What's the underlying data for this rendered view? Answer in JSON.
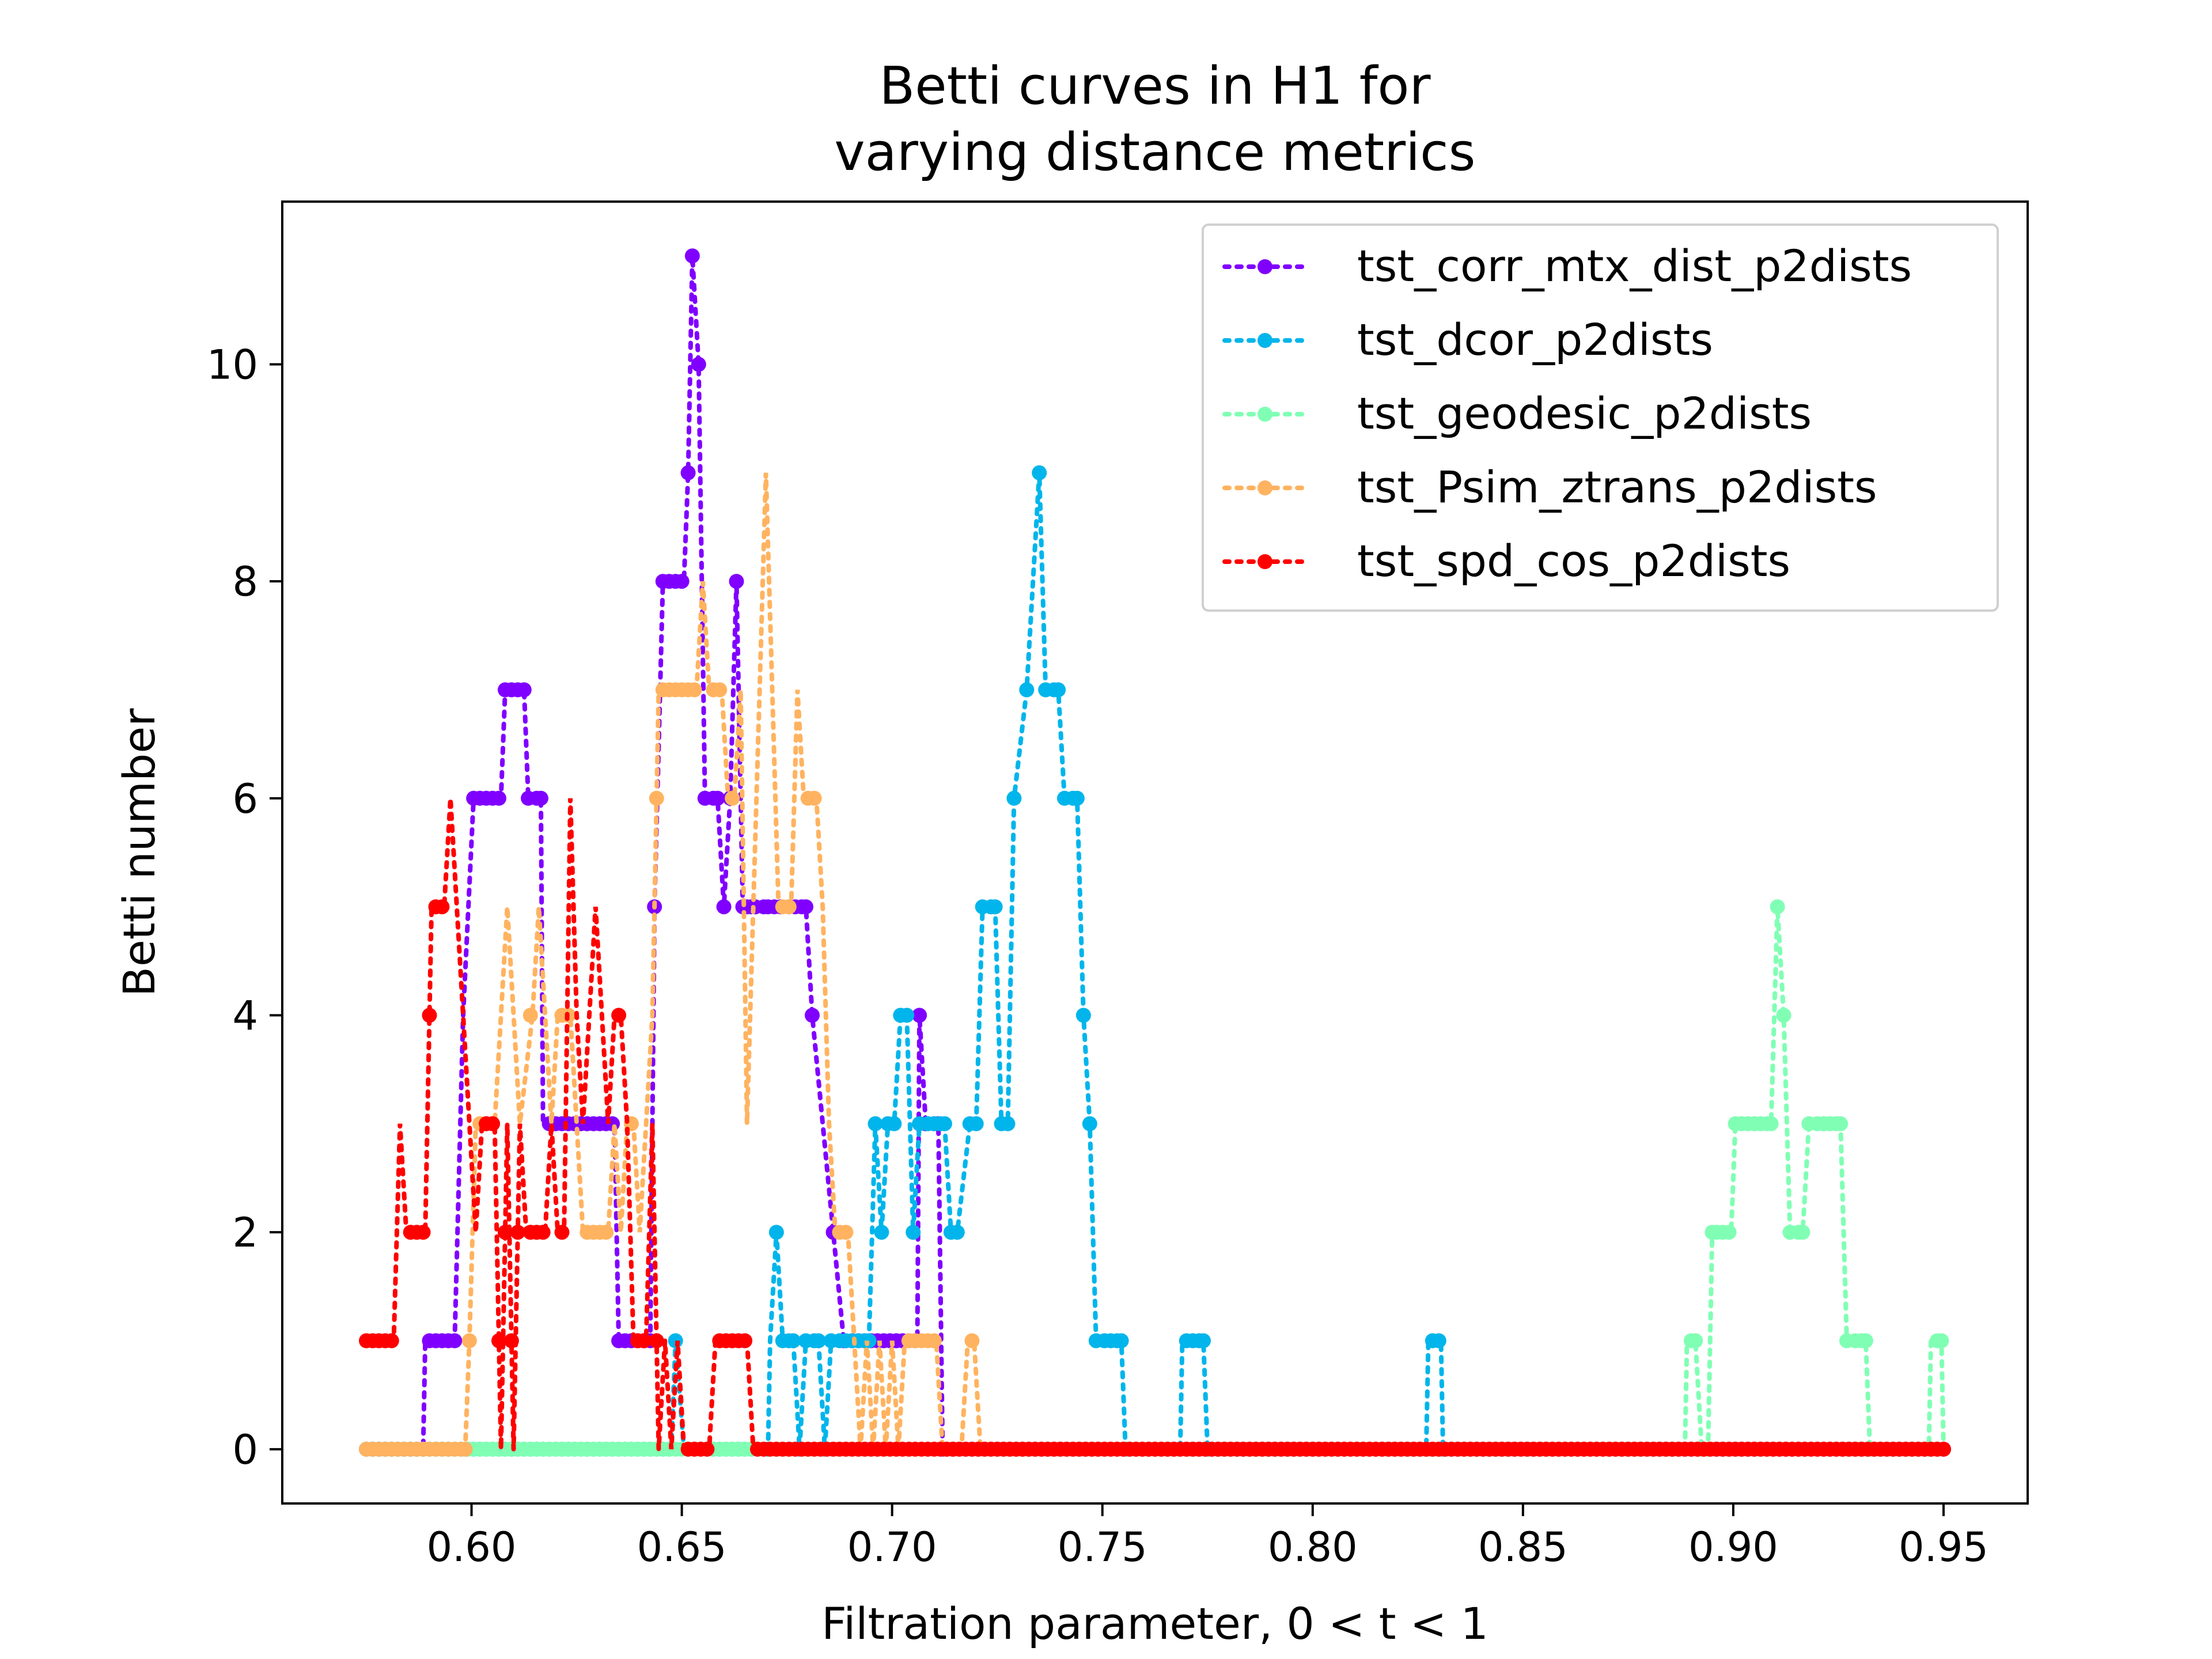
{
  "chart_data": {
    "type": "line",
    "title_lines": [
      "Betti curves in H1 for",
      "varying distance metrics"
    ],
    "xlabel": "Filtration parameter, 0 < t < 1",
    "ylabel": "Betti number",
    "xlim": [
      0.555,
      0.97
    ],
    "ylim": [
      -0.5,
      11.5
    ],
    "xticks": [
      0.6,
      0.65,
      0.7,
      0.75,
      0.8,
      0.85,
      0.9,
      0.95
    ],
    "xtick_labels": [
      "0.60",
      "0.65",
      "0.70",
      "0.75",
      "0.80",
      "0.85",
      "0.90",
      "0.95"
    ],
    "yticks": [
      0,
      2,
      4,
      6,
      8,
      10
    ],
    "ytick_labels": [
      "0",
      "2",
      "4",
      "6",
      "8",
      "10"
    ],
    "grid": false,
    "legend_position": "top-right",
    "x_start": 0.575,
    "x_step": 0.0015,
    "series": [
      {
        "name": "tst_corr_mtx_dist_p2dists",
        "color": "#8000ff",
        "points": [
          [
            0.575,
            0
          ],
          [
            0.5885,
            0
          ],
          [
            0.589,
            1
          ],
          [
            0.596,
            1
          ],
          [
            0.598,
            4
          ],
          [
            0.6005,
            6
          ],
          [
            0.607,
            6
          ],
          [
            0.608,
            7
          ],
          [
            0.6125,
            7
          ],
          [
            0.6135,
            6
          ],
          [
            0.6165,
            6
          ],
          [
            0.617,
            3
          ],
          [
            0.634,
            3
          ],
          [
            0.635,
            1
          ],
          [
            0.6425,
            1
          ],
          [
            0.6435,
            5
          ],
          [
            0.6455,
            8
          ],
          [
            0.6505,
            8
          ],
          [
            0.6515,
            9
          ],
          [
            0.6525,
            11
          ],
          [
            0.654,
            10
          ],
          [
            0.6555,
            6
          ],
          [
            0.6585,
            6
          ],
          [
            0.66,
            5
          ],
          [
            0.6615,
            6
          ],
          [
            0.663,
            8
          ],
          [
            0.6645,
            5
          ],
          [
            0.6655,
            5
          ],
          [
            0.6675,
            5
          ],
          [
            0.6705,
            5
          ],
          [
            0.672,
            5
          ],
          [
            0.6735,
            5
          ],
          [
            0.6795,
            5
          ],
          [
            0.681,
            4
          ],
          [
            0.6885,
            1
          ],
          [
            0.706,
            1
          ],
          [
            0.7065,
            4
          ],
          [
            0.708,
            3
          ],
          [
            0.711,
            3
          ],
          [
            0.712,
            0
          ],
          [
            0.95,
            0
          ]
        ]
      },
      {
        "name": "tst_dcor_p2dists",
        "color": "#00b5eb",
        "points": [
          [
            0.575,
            0
          ],
          [
            0.6475,
            0
          ],
          [
            0.6485,
            1
          ],
          [
            0.6505,
            0
          ],
          [
            0.6705,
            0
          ],
          [
            0.671,
            1
          ],
          [
            0.6725,
            2
          ],
          [
            0.674,
            1
          ],
          [
            0.6765,
            1
          ],
          [
            0.678,
            0
          ],
          [
            0.6795,
            1
          ],
          [
            0.6825,
            1
          ],
          [
            0.684,
            0
          ],
          [
            0.6855,
            1
          ],
          [
            0.6945,
            1
          ],
          [
            0.696,
            3
          ],
          [
            0.6975,
            2
          ],
          [
            0.699,
            3
          ],
          [
            0.7005,
            3
          ],
          [
            0.702,
            4
          ],
          [
            0.7035,
            4
          ],
          [
            0.705,
            2
          ],
          [
            0.7065,
            3
          ],
          [
            0.7125,
            3
          ],
          [
            0.714,
            2
          ],
          [
            0.7155,
            2
          ],
          [
            0.7185,
            3
          ],
          [
            0.72,
            3
          ],
          [
            0.7215,
            5
          ],
          [
            0.7245,
            5
          ],
          [
            0.726,
            3
          ],
          [
            0.7275,
            3
          ],
          [
            0.729,
            6
          ],
          [
            0.732,
            7
          ],
          [
            0.735,
            9
          ],
          [
            0.7365,
            7
          ],
          [
            0.7395,
            7
          ],
          [
            0.741,
            6
          ],
          [
            0.744,
            6
          ],
          [
            0.7455,
            4
          ],
          [
            0.747,
            3
          ],
          [
            0.7485,
            1
          ],
          [
            0.7545,
            1
          ],
          [
            0.7555,
            0
          ],
          [
            0.7685,
            0
          ],
          [
            0.769,
            1
          ],
          [
            0.774,
            1
          ],
          [
            0.775,
            0
          ],
          [
            0.827,
            0
          ],
          [
            0.8275,
            1
          ],
          [
            0.8305,
            1
          ],
          [
            0.831,
            0
          ],
          [
            0.95,
            0
          ]
        ]
      },
      {
        "name": "tst_geodesic_p2dists",
        "color": "#80ffb4",
        "points": [
          [
            0.575,
            0
          ],
          [
            0.8885,
            0
          ],
          [
            0.889,
            1
          ],
          [
            0.891,
            1
          ],
          [
            0.8925,
            0
          ],
          [
            0.894,
            0
          ],
          [
            0.895,
            2
          ],
          [
            0.8995,
            2
          ],
          [
            0.9005,
            3
          ],
          [
            0.909,
            3
          ],
          [
            0.9105,
            5
          ],
          [
            0.912,
            4
          ],
          [
            0.9135,
            2
          ],
          [
            0.9165,
            2
          ],
          [
            0.918,
            3
          ],
          [
            0.9255,
            3
          ],
          [
            0.927,
            1
          ],
          [
            0.9315,
            1
          ],
          [
            0.9325,
            0
          ],
          [
            0.9465,
            0
          ],
          [
            0.947,
            1
          ],
          [
            0.9495,
            1
          ],
          [
            0.95,
            0
          ]
        ]
      },
      {
        "name": "tst_Psim_ztrans_p2dists",
        "color": "#ffb360",
        "points": [
          [
            0.575,
            0
          ],
          [
            0.5985,
            0
          ],
          [
            0.5995,
            1
          ],
          [
            0.601,
            3
          ],
          [
            0.6055,
            3
          ],
          [
            0.607,
            4
          ],
          [
            0.6085,
            5
          ],
          [
            0.61,
            4
          ],
          [
            0.6115,
            3
          ],
          [
            0.6145,
            4
          ],
          [
            0.616,
            5
          ],
          [
            0.6175,
            4
          ],
          [
            0.619,
            3
          ],
          [
            0.6205,
            4
          ],
          [
            0.6235,
            4
          ],
          [
            0.6265,
            2
          ],
          [
            0.6325,
            2
          ],
          [
            0.634,
            3
          ],
          [
            0.6355,
            2
          ],
          [
            0.637,
            3
          ],
          [
            0.6385,
            3
          ],
          [
            0.64,
            2
          ],
          [
            0.6415,
            3
          ],
          [
            0.643,
            4
          ],
          [
            0.6445,
            7
          ],
          [
            0.6535,
            7
          ],
          [
            0.655,
            8
          ],
          [
            0.6565,
            7
          ],
          [
            0.6595,
            7
          ],
          [
            0.661,
            6
          ],
          [
            0.6625,
            6
          ],
          [
            0.664,
            7
          ],
          [
            0.6655,
            3
          ],
          [
            0.667,
            5
          ],
          [
            0.6685,
            7
          ],
          [
            0.67,
            9
          ],
          [
            0.6715,
            7
          ],
          [
            0.673,
            5
          ],
          [
            0.676,
            5
          ],
          [
            0.6775,
            7
          ],
          [
            0.679,
            6
          ],
          [
            0.682,
            6
          ],
          [
            0.6835,
            5
          ],
          [
            0.685,
            3
          ],
          [
            0.6865,
            2
          ],
          [
            0.6895,
            2
          ],
          [
            0.691,
            1
          ],
          [
            0.6925,
            0
          ],
          [
            0.694,
            1
          ],
          [
            0.6955,
            0
          ],
          [
            0.697,
            1
          ],
          [
            0.6985,
            0
          ],
          [
            0.7,
            1
          ],
          [
            0.7015,
            0
          ],
          [
            0.703,
            1
          ],
          [
            0.7105,
            1
          ],
          [
            0.712,
            0
          ],
          [
            0.7165,
            0
          ],
          [
            0.718,
            1
          ],
          [
            0.7195,
            1
          ],
          [
            0.721,
            0
          ],
          [
            0.95,
            0
          ]
        ]
      },
      {
        "name": "tst_spd_cos_p2dists",
        "color": "#ff0000",
        "points": [
          [
            0.575,
            1
          ],
          [
            0.5815,
            1
          ],
          [
            0.583,
            3
          ],
          [
            0.5845,
            2
          ],
          [
            0.589,
            2
          ],
          [
            0.5905,
            5
          ],
          [
            0.5935,
            5
          ],
          [
            0.595,
            6
          ],
          [
            0.5965,
            5
          ],
          [
            0.598,
            4
          ],
          [
            0.5995,
            3
          ],
          [
            0.601,
            2
          ],
          [
            0.6025,
            3
          ],
          [
            0.6055,
            3
          ],
          [
            0.607,
            0
          ],
          [
            0.6085,
            3
          ],
          [
            0.61,
            0
          ],
          [
            0.6115,
            3
          ],
          [
            0.613,
            2
          ],
          [
            0.6175,
            2
          ],
          [
            0.619,
            3
          ],
          [
            0.6205,
            2
          ],
          [
            0.622,
            2
          ],
          [
            0.6235,
            6
          ],
          [
            0.625,
            4
          ],
          [
            0.6265,
            3
          ],
          [
            0.628,
            4
          ],
          [
            0.6295,
            5
          ],
          [
            0.631,
            4
          ],
          [
            0.6325,
            3
          ],
          [
            0.634,
            4
          ],
          [
            0.6355,
            4
          ],
          [
            0.637,
            3
          ],
          [
            0.6385,
            1
          ],
          [
            0.6415,
            1
          ],
          [
            0.643,
            3
          ],
          [
            0.6445,
            0
          ],
          [
            0.646,
            1
          ],
          [
            0.6475,
            0
          ],
          [
            0.649,
            1
          ],
          [
            0.6505,
            0
          ],
          [
            0.652,
            0
          ],
          [
            0.6535,
            0
          ],
          [
            0.655,
            0
          ],
          [
            0.6565,
            0
          ],
          [
            0.658,
            1
          ],
          [
            0.6655,
            1
          ],
          [
            0.667,
            0
          ],
          [
            0.95,
            0
          ]
        ]
      }
    ]
  }
}
